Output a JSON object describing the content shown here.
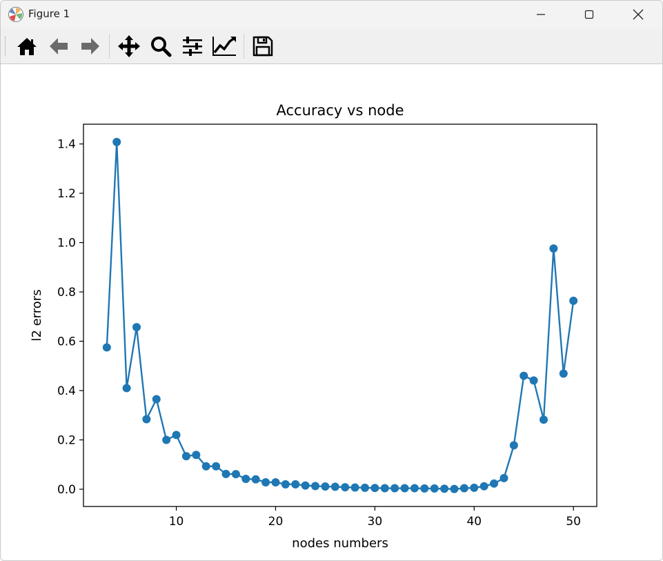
{
  "window": {
    "title": "Figure 1",
    "controls": [
      "minimize",
      "maximize",
      "close"
    ]
  },
  "toolbar": {
    "buttons": [
      {
        "name": "home",
        "icon": "home-icon"
      },
      {
        "name": "back",
        "icon": "arrow-left-icon"
      },
      {
        "name": "forward",
        "icon": "arrow-right-icon"
      },
      {
        "name": "pan",
        "icon": "move-icon"
      },
      {
        "name": "zoom",
        "icon": "magnifier-icon"
      },
      {
        "name": "configure-subplots",
        "icon": "sliders-icon"
      },
      {
        "name": "edit-axis",
        "icon": "line-chart-icon"
      },
      {
        "name": "save",
        "icon": "floppy-disk-icon"
      }
    ]
  },
  "colors": {
    "series": "#1f77b4",
    "axes": "#000000",
    "titlebar": "#f3f3f3",
    "toolbar": "#f0f0f0"
  },
  "chart_data": {
    "type": "line",
    "title": "Accuracy vs node",
    "xlabel": "nodes numbers",
    "ylabel": "l2 errors",
    "xlim": [
      0.65,
      52.35
    ],
    "ylim": [
      -0.07,
      1.48
    ],
    "xticks": [
      10,
      20,
      30,
      40,
      50
    ],
    "yticks": [
      0.0,
      0.2,
      0.4,
      0.6,
      0.8,
      1.0,
      1.2,
      1.4
    ],
    "ytick_labels": [
      "0.0",
      "0.2",
      "0.4",
      "0.6",
      "0.8",
      "1.0",
      "1.2",
      "1.4"
    ],
    "xtick_labels": [
      "10",
      "20",
      "30",
      "40",
      "50"
    ],
    "grid": false,
    "marker": "circle",
    "x": [
      3,
      4,
      5,
      6,
      7,
      8,
      9,
      10,
      11,
      12,
      13,
      14,
      15,
      16,
      17,
      18,
      19,
      20,
      21,
      22,
      23,
      24,
      25,
      26,
      27,
      28,
      29,
      30,
      31,
      32,
      33,
      34,
      35,
      36,
      37,
      38,
      39,
      40,
      41,
      42,
      43,
      44,
      45,
      46,
      47,
      48,
      49,
      50
    ],
    "y": [
      0.575,
      1.408,
      0.41,
      0.657,
      0.284,
      0.365,
      0.2,
      0.22,
      0.134,
      0.139,
      0.093,
      0.093,
      0.062,
      0.061,
      0.042,
      0.04,
      0.028,
      0.028,
      0.02,
      0.02,
      0.015,
      0.013,
      0.011,
      0.01,
      0.008,
      0.007,
      0.006,
      0.005,
      0.004,
      0.004,
      0.004,
      0.004,
      0.003,
      0.003,
      0.002,
      0.001,
      0.004,
      0.006,
      0.012,
      0.023,
      0.045,
      0.178,
      0.46,
      0.441,
      0.282,
      0.976,
      0.469,
      0.764
    ]
  }
}
